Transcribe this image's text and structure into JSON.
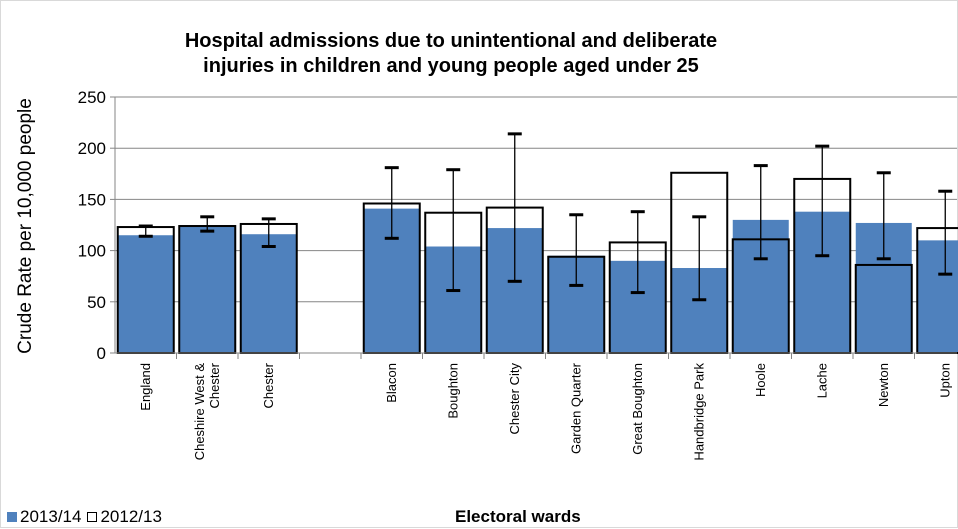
{
  "chart_data": {
    "type": "bar",
    "title_line1": "Hospital admissions due to unintentional and deliberate",
    "title_line2": "injuries in children and young people aged under 25",
    "xlabel": "Electoral wards",
    "ylabel": "Crude Rate per 10,000 people",
    "ylim": [
      0,
      250
    ],
    "yticks": [
      0,
      50,
      100,
      150,
      200,
      250
    ],
    "categories": [
      "England",
      "Cheshire West & Chester",
      "Chester",
      "",
      "Blacon",
      "Boughton",
      "Chester City",
      "Garden Quarter",
      "Great Boughton",
      "Handbridge Park",
      "Hoole",
      "Lache",
      "Newton",
      "Upton"
    ],
    "category_labels": [
      [
        "England"
      ],
      [
        "Cheshire West &",
        "Chester"
      ],
      [
        "Chester"
      ],
      [],
      [
        "Blacon"
      ],
      [
        "Boughton"
      ],
      [
        "Chester City"
      ],
      [
        "Garden Quarter"
      ],
      [
        "Great Boughton"
      ],
      [
        "Handbridge Park"
      ],
      [
        "Hoole"
      ],
      [
        "Lache"
      ],
      [
        "Newton"
      ],
      [
        "Upton"
      ]
    ],
    "series": [
      {
        "name": "2013/14",
        "color": "#4f81bd",
        "values": [
          115,
          125,
          116,
          null,
          141,
          104,
          122,
          95,
          90,
          83,
          130,
          138,
          127,
          110
        ],
        "error_low": [
          114,
          119,
          104,
          null,
          112,
          61,
          70,
          66,
          59,
          52,
          92,
          95,
          92,
          77
        ],
        "error_high": [
          124,
          133,
          131,
          null,
          181,
          179,
          214,
          135,
          138,
          133,
          183,
          202,
          176,
          158
        ]
      },
      {
        "name": "2012/13",
        "color": "#ffffff",
        "values": [
          123,
          124,
          126,
          null,
          146,
          137,
          142,
          94,
          108,
          176,
          111,
          170,
          86,
          122
        ]
      }
    ],
    "legend_position": "bottom-left",
    "grid": true
  }
}
